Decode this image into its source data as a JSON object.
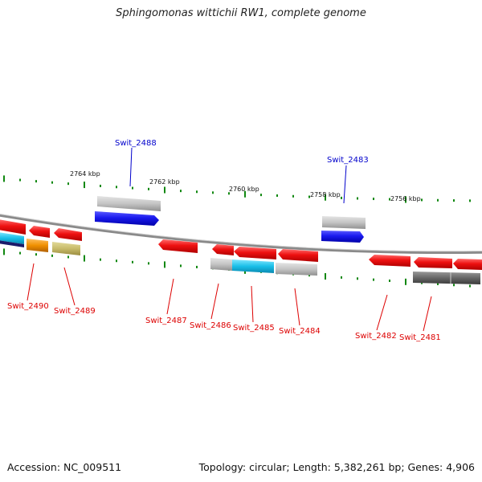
{
  "title": "Sphingomonas wittichii RW1, complete genome",
  "accession": "Accession: NC_009511",
  "topology": "Topology: circular; Length: 5,382,261 bp; Genes: 4,906",
  "kbp_labels": [
    "2764 kbp",
    "2762 kbp",
    "2760 kbp",
    "2758 kbp",
    "2756 kbp"
  ],
  "colors": {
    "forward_label": "#0000cc",
    "reverse_label": "#dd0000",
    "tick": "#118811",
    "backbone": "#8a8a8a"
  },
  "genes": [
    {
      "name": "Swit_2490",
      "strand": "reverse",
      "color": "#ee1111"
    },
    {
      "name": "Swit_2489",
      "strand": "reverse",
      "color": "#ee1111"
    },
    {
      "name": "Swit_2488",
      "strand": "forward",
      "color": "#1a1aee"
    },
    {
      "name": "Swit_2487",
      "strand": "reverse",
      "color": "#ee1111"
    },
    {
      "name": "Swit_2486",
      "strand": "reverse",
      "color": "#ee1111"
    },
    {
      "name": "Swit_2485",
      "strand": "reverse",
      "color": "#ee1111"
    },
    {
      "name": "Swit_2484",
      "strand": "reverse",
      "color": "#ee1111"
    },
    {
      "name": "Swit_2483",
      "strand": "forward",
      "color": "#1a1aee"
    },
    {
      "name": "Swit_2482",
      "strand": "reverse",
      "color": "#ee1111"
    },
    {
      "name": "Swit_2481",
      "strand": "reverse",
      "color": "#ee1111"
    }
  ]
}
